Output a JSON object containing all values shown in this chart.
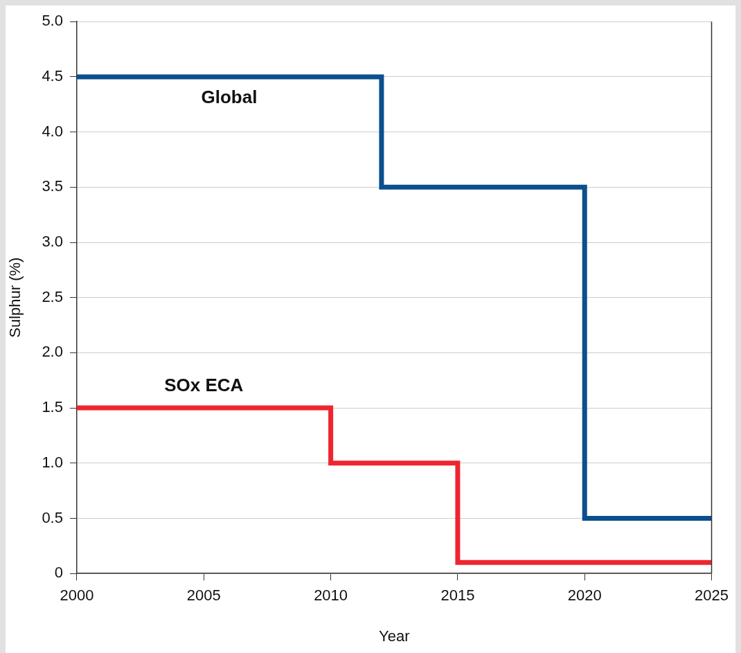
{
  "chart_data": {
    "type": "step",
    "xlabel": "Year",
    "ylabel": "Sulphur (%)",
    "series": [
      {
        "name": "Global",
        "color": "#0b4f8e",
        "x": [
          2000,
          2012,
          2020,
          2025
        ],
        "values": [
          4.5,
          3.5,
          0.5,
          0.5
        ]
      },
      {
        "name": "SOx ECA",
        "color": "#ee252e",
        "x": [
          2000,
          2010,
          2015,
          2025
        ],
        "values": [
          1.5,
          1.0,
          0.1,
          0.1
        ]
      }
    ],
    "xlim": [
      2000,
      2025
    ],
    "xticks": [
      2000,
      2005,
      2010,
      2015,
      2020,
      2025
    ],
    "ylim": [
      0,
      5
    ],
    "yticks": [
      0,
      {
        "value": 0.5,
        "label": "0.5"
      },
      {
        "value": 1,
        "label": "1.0"
      },
      {
        "value": 1.5,
        "label": "1.5"
      },
      {
        "value": 2,
        "label": "2.0"
      },
      {
        "value": 2.5,
        "label": "2.5"
      },
      {
        "value": 3,
        "label": "3.0"
      },
      {
        "value": 3.5,
        "label": "3.5"
      },
      {
        "value": 4,
        "label": "4.0"
      },
      {
        "value": 4.5,
        "label": "4.5"
      },
      {
        "value": 5,
        "label": "5.0"
      }
    ],
    "grid": "y",
    "legend": false,
    "marker": "none",
    "line_style": "solid"
  }
}
